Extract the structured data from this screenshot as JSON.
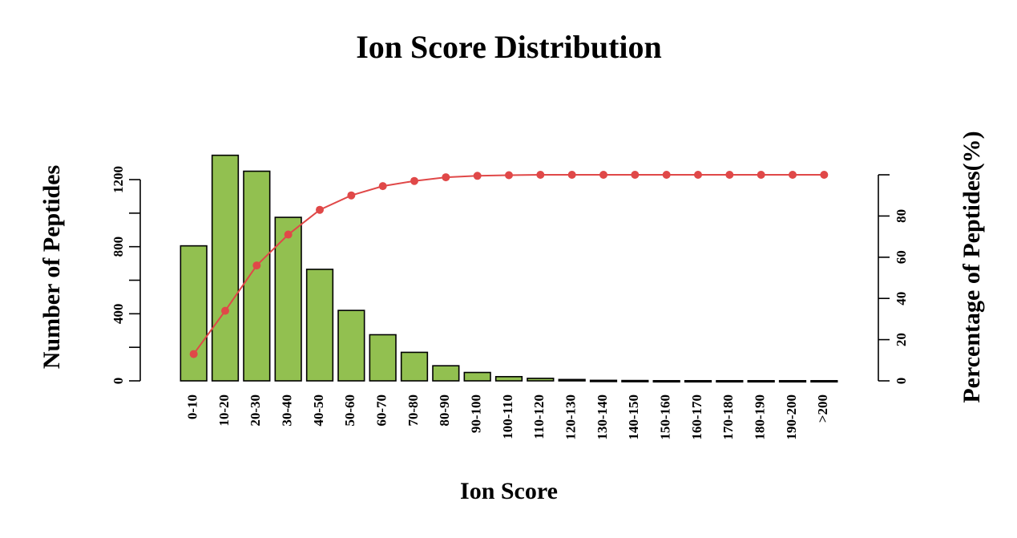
{
  "chart_data": {
    "type": "bar",
    "title": "Ion Score Distribution",
    "xlabel": "Ion Score",
    "ylabel": "Number of Peptides",
    "y2label": "Percentage of Peptides(%)",
    "categories": [
      "0-10",
      "10-20",
      "20-30",
      "30-40",
      "40-50",
      "50-60",
      "60-70",
      "70-80",
      "80-90",
      "90-100",
      "100-110",
      "110-120",
      "120-130",
      "130-140",
      "140-150",
      "150-160",
      "160-170",
      "170-180",
      "180-190",
      "190-200",
      ">200"
    ],
    "series": [
      {
        "type": "bar",
        "axis": "left",
        "color": "#92C050",
        "values": [
          805,
          1345,
          1250,
          975,
          665,
          420,
          275,
          170,
          90,
          50,
          25,
          15,
          8,
          3,
          2,
          1,
          1,
          1,
          1,
          1,
          1
        ]
      },
      {
        "type": "line",
        "axis": "right",
        "color": "#E04848",
        "values": [
          13,
          34,
          56,
          71,
          83,
          90,
          94.5,
          97,
          98.8,
          99.5,
          99.8,
          100,
          100,
          100,
          100,
          100,
          100,
          100,
          100,
          100,
          100
        ]
      }
    ],
    "ylim": [
      0,
      1200
    ],
    "yticks": [
      "0",
      "400",
      "800",
      "1200"
    ],
    "y_minor_ticks": [
      200,
      600,
      1000
    ],
    "y2lim": [
      0,
      100
    ],
    "y2ticks": [
      "0",
      "20",
      "40",
      "60",
      "80"
    ],
    "y2_extra_tick": 100,
    "grid": false,
    "legend": "none"
  }
}
